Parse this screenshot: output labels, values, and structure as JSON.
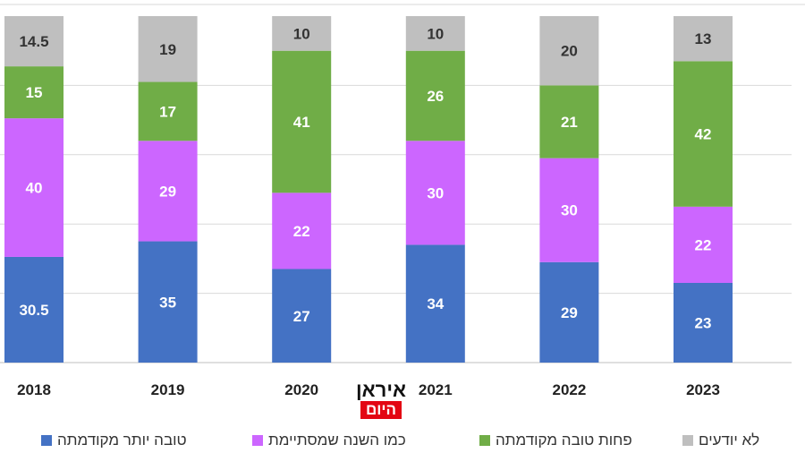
{
  "chart_data": {
    "type": "bar",
    "stacked": true,
    "categories": [
      "2018",
      "2019",
      "2020",
      "2021",
      "2022",
      "2023"
    ],
    "series": [
      {
        "name": "טובה יותר מקודמתה",
        "color": "#4472C4",
        "values": [
          30.5,
          35,
          27,
          34,
          29,
          23
        ]
      },
      {
        "name": "כמו השנה שמסתיימת",
        "color": "#CC66FF",
        "values": [
          40,
          29,
          22,
          30,
          30,
          22
        ]
      },
      {
        "name": "פחות טובה מקודמתה",
        "color": "#70AD47",
        "values": [
          15,
          17,
          41,
          26,
          21,
          42
        ]
      },
      {
        "name": "לא יודעים",
        "color": "#BFBFBF",
        "values": [
          14.5,
          19,
          10,
          10,
          20,
          13
        ]
      }
    ],
    "ylim": [
      0,
      100
    ],
    "grid": true,
    "legend_position": "bottom",
    "title": "",
    "xlabel": "",
    "ylabel": ""
  },
  "logo": {
    "line1": "איראן",
    "line2": "היום"
  }
}
